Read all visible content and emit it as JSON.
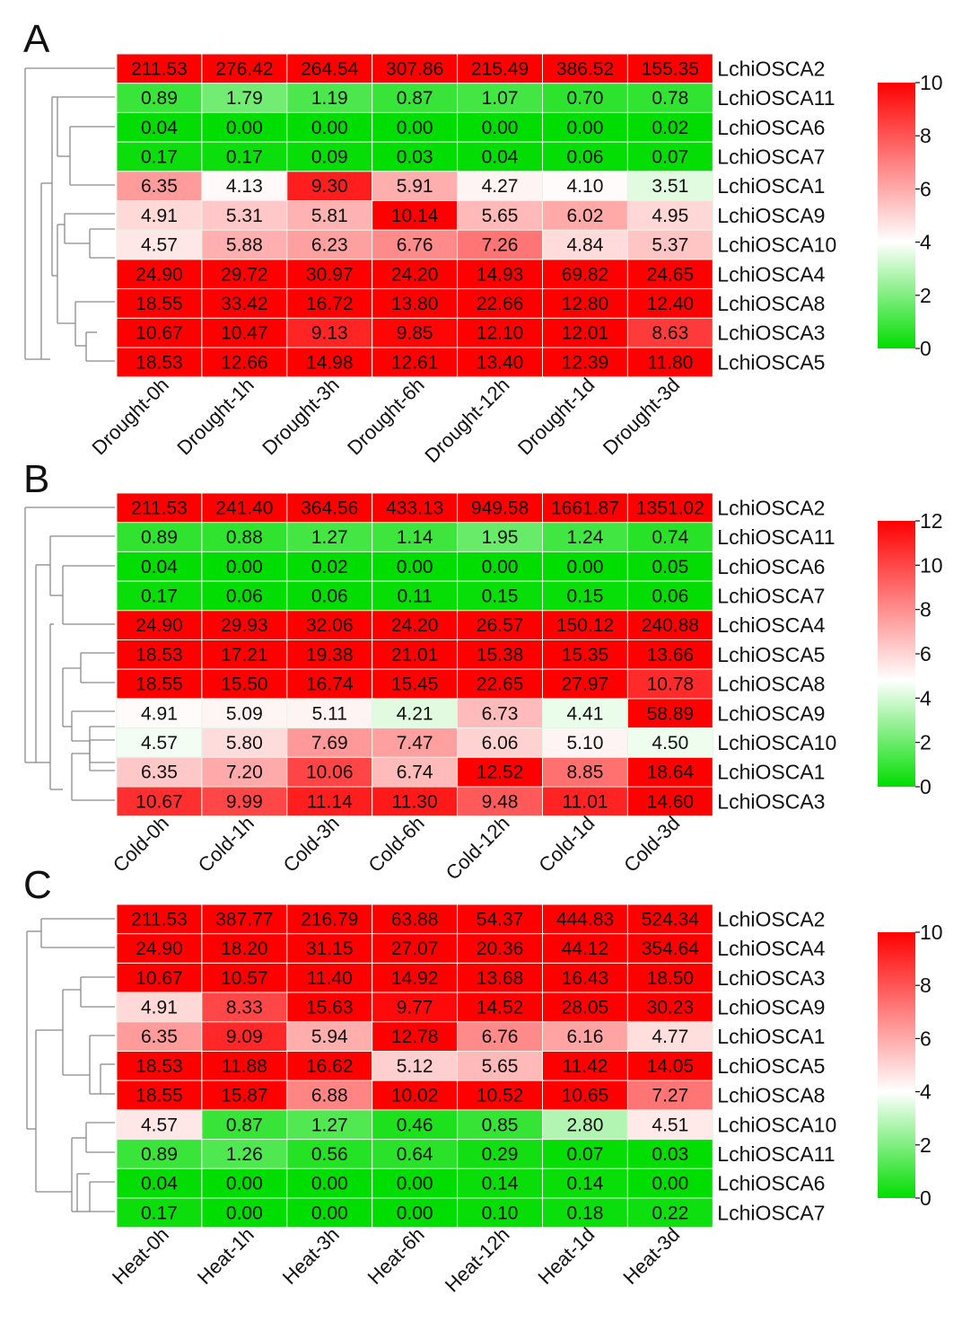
{
  "chart_data": [
    {
      "type": "heatmap",
      "panel": "A",
      "columns": [
        "Drought-0h",
        "Drought-1h",
        "Drought-3h",
        "Drought-6h",
        "Drought-12h",
        "Drought-1d",
        "Drought-3d"
      ],
      "rows": [
        {
          "gene": "LchiOSCA2",
          "values": [
            "211.53",
            "276.42",
            "264.54",
            "307.86",
            "215.49",
            "386.52",
            "155.35"
          ]
        },
        {
          "gene": "LchiOSCA11",
          "values": [
            "0.89",
            "1.79",
            "1.19",
            "0.87",
            "1.07",
            "0.70",
            "0.78"
          ]
        },
        {
          "gene": "LchiOSCA6",
          "values": [
            "0.04",
            "0.00",
            "0.00",
            "0.00",
            "0.00",
            "0.00",
            "0.02"
          ]
        },
        {
          "gene": "LchiOSCA7",
          "values": [
            "0.17",
            "0.17",
            "0.09",
            "0.03",
            "0.04",
            "0.06",
            "0.07"
          ]
        },
        {
          "gene": "LchiOSCA1",
          "values": [
            "6.35",
            "4.13",
            "9.30",
            "5.91",
            "4.27",
            "4.10",
            "3.51"
          ]
        },
        {
          "gene": "LchiOSCA9",
          "values": [
            "4.91",
            "5.31",
            "5.81",
            "10.14",
            "5.65",
            "6.02",
            "4.95"
          ]
        },
        {
          "gene": "LchiOSCA10",
          "values": [
            "4.57",
            "5.88",
            "6.23",
            "6.76",
            "7.26",
            "4.84",
            "5.37"
          ]
        },
        {
          "gene": "LchiOSCA4",
          "values": [
            "24.90",
            "29.72",
            "30.97",
            "24.20",
            "14.93",
            "69.82",
            "24.65"
          ]
        },
        {
          "gene": "LchiOSCA8",
          "values": [
            "18.55",
            "33.42",
            "16.72",
            "13.80",
            "22.66",
            "12.80",
            "12.40"
          ]
        },
        {
          "gene": "LchiOSCA3",
          "values": [
            "10.67",
            "10.47",
            "9.13",
            "9.85",
            "12.10",
            "12.01",
            "8.63"
          ]
        },
        {
          "gene": "LchiOSCA5",
          "values": [
            "18.53",
            "12.66",
            "14.98",
            "12.61",
            "13.40",
            "12.39",
            "11.80"
          ]
        }
      ],
      "colorbar": {
        "min": 0,
        "max": 10,
        "ticks": [
          "0",
          "2",
          "4",
          "6",
          "8",
          "10"
        ]
      }
    },
    {
      "type": "heatmap",
      "panel": "B",
      "columns": [
        "Cold-0h",
        "Cold-1h",
        "Cold-3h",
        "Cold-6h",
        "Cold-12h",
        "Cold-1d",
        "Cold-3d"
      ],
      "rows": [
        {
          "gene": "LchiOSCA2",
          "values": [
            "211.53",
            "241.40",
            "364.56",
            "433.13",
            "949.58",
            "1661.87",
            "1351.02"
          ]
        },
        {
          "gene": "LchiOSCA11",
          "values": [
            "0.89",
            "0.88",
            "1.27",
            "1.14",
            "1.95",
            "1.24",
            "0.74"
          ]
        },
        {
          "gene": "LchiOSCA6",
          "values": [
            "0.04",
            "0.00",
            "0.02",
            "0.00",
            "0.00",
            "0.00",
            "0.05"
          ]
        },
        {
          "gene": "LchiOSCA7",
          "values": [
            "0.17",
            "0.06",
            "0.06",
            "0.11",
            "0.15",
            "0.15",
            "0.06"
          ]
        },
        {
          "gene": "LchiOSCA4",
          "values": [
            "24.90",
            "29.93",
            "32.06",
            "24.20",
            "26.57",
            "150.12",
            "240.88"
          ]
        },
        {
          "gene": "LchiOSCA5",
          "values": [
            "18.53",
            "17.21",
            "19.38",
            "21.01",
            "15.38",
            "15.35",
            "13.66"
          ]
        },
        {
          "gene": "LchiOSCA8",
          "values": [
            "18.55",
            "15.50",
            "16.74",
            "15.45",
            "22.65",
            "27.97",
            "10.78"
          ]
        },
        {
          "gene": "LchiOSCA9",
          "values": [
            "4.91",
            "5.09",
            "5.11",
            "4.21",
            "6.73",
            "4.41",
            "58.89"
          ]
        },
        {
          "gene": "LchiOSCA10",
          "values": [
            "4.57",
            "5.80",
            "7.69",
            "7.47",
            "6.06",
            "5.10",
            "4.50"
          ]
        },
        {
          "gene": "LchiOSCA1",
          "values": [
            "6.35",
            "7.20",
            "10.06",
            "6.74",
            "12.52",
            "8.85",
            "18.64"
          ]
        },
        {
          "gene": "LchiOSCA3",
          "values": [
            "10.67",
            "9.99",
            "11.14",
            "11.30",
            "9.48",
            "11.01",
            "14.60"
          ]
        }
      ],
      "colorbar": {
        "min": 0,
        "max": 12,
        "ticks": [
          "0",
          "2",
          "4",
          "6",
          "8",
          "10",
          "12"
        ]
      }
    },
    {
      "type": "heatmap",
      "panel": "C",
      "columns": [
        "Heat-0h",
        "Heat-1h",
        "Heat-3h",
        "Heat-6h",
        "Heat-12h",
        "Heat-1d",
        "Heat-3d"
      ],
      "rows": [
        {
          "gene": "LchiOSCA2",
          "values": [
            "211.53",
            "387.77",
            "216.79",
            "63.88",
            "54.37",
            "444.83",
            "524.34"
          ]
        },
        {
          "gene": "LchiOSCA4",
          "values": [
            "24.90",
            "18.20",
            "31.15",
            "27.07",
            "20.36",
            "44.12",
            "354.64"
          ]
        },
        {
          "gene": "LchiOSCA3",
          "values": [
            "10.67",
            "10.57",
            "11.40",
            "14.92",
            "13.68",
            "16.43",
            "18.50"
          ]
        },
        {
          "gene": "LchiOSCA9",
          "values": [
            "4.91",
            "8.33",
            "15.63",
            "9.77",
            "14.52",
            "28.05",
            "30.23"
          ]
        },
        {
          "gene": "LchiOSCA1",
          "values": [
            "6.35",
            "9.09",
            "5.94",
            "12.78",
            "6.76",
            "6.16",
            "4.77"
          ]
        },
        {
          "gene": "LchiOSCA5",
          "values": [
            "18.53",
            "11.88",
            "16.62",
            "5.12",
            "5.65",
            "11.42",
            "14.05"
          ]
        },
        {
          "gene": "LchiOSCA8",
          "values": [
            "18.55",
            "15.87",
            "6.88",
            "10.02",
            "10.52",
            "10.65",
            "7.27"
          ]
        },
        {
          "gene": "LchiOSCA10",
          "values": [
            "4.57",
            "0.87",
            "1.27",
            "0.46",
            "0.85",
            "2.80",
            "4.51"
          ]
        },
        {
          "gene": "LchiOSCA11",
          "values": [
            "0.89",
            "1.26",
            "0.56",
            "0.64",
            "0.29",
            "0.07",
            "0.03"
          ]
        },
        {
          "gene": "LchiOSCA6",
          "values": [
            "0.04",
            "0.00",
            "0.00",
            "0.00",
            "0.14",
            "0.14",
            "0.00"
          ]
        },
        {
          "gene": "LchiOSCA7",
          "values": [
            "0.17",
            "0.00",
            "0.00",
            "0.00",
            "0.10",
            "0.18",
            "0.22"
          ]
        }
      ],
      "colorbar": {
        "min": 0,
        "max": 10,
        "ticks": [
          "0",
          "2",
          "4",
          "6",
          "8",
          "10"
        ]
      }
    }
  ],
  "colors": {
    "low": "#00dd00",
    "mid": "#ffffff",
    "high": "#ff0000"
  }
}
